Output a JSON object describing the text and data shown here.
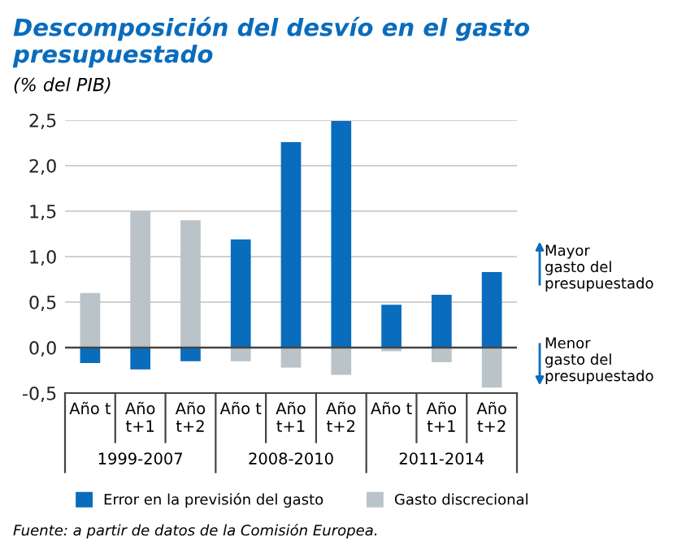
{
  "chart_data": {
    "type": "bar",
    "title": "Descomposición del desvío en el gasto presupuestado",
    "subtitle": "(% del PIB)",
    "categories": [
      "Año t",
      "Año\nt+1",
      "Año\nt+2",
      "Año t",
      "Año\nt+1",
      "Año\nt+2",
      "Año t",
      "Año\nt+1",
      "Año\nt+2"
    ],
    "series": [
      {
        "name": "Error en la previsión del gasto",
        "color": "#0a6cbc",
        "values": [
          -0.17,
          -0.24,
          -0.15,
          1.19,
          2.26,
          2.49,
          0.47,
          0.58,
          0.83
        ]
      },
      {
        "name": "Gasto discrecional",
        "color": "#b9c3c8",
        "values": [
          0.6,
          1.5,
          1.4,
          -0.15,
          -0.22,
          -0.3,
          -0.04,
          -0.16,
          -0.44
        ]
      }
    ],
    "ylim": [
      -0.5,
      2.5
    ],
    "yticks": [
      {
        "value": -0.5,
        "label": "-0,5"
      },
      {
        "value": 0,
        "label": "0,0"
      },
      {
        "value": 0.5,
        "label": "0,5"
      },
      {
        "value": 1,
        "label": "1,0"
      },
      {
        "value": 1.5,
        "label": "1,5"
      },
      {
        "value": 2,
        "label": "2,0"
      },
      {
        "value": 2.5,
        "label": "2,5"
      }
    ],
    "stacked": true,
    "grid": "y",
    "legend": "bottom",
    "annotations": [
      "1999-2007",
      "2008-2010",
      "2011-2014",
      "Mayor\ngasto del\npresupuestado",
      "Menor\ngasto del\npresupuestado",
      "Fuente: a partir de datos de la Comisión Europea."
    ]
  }
}
